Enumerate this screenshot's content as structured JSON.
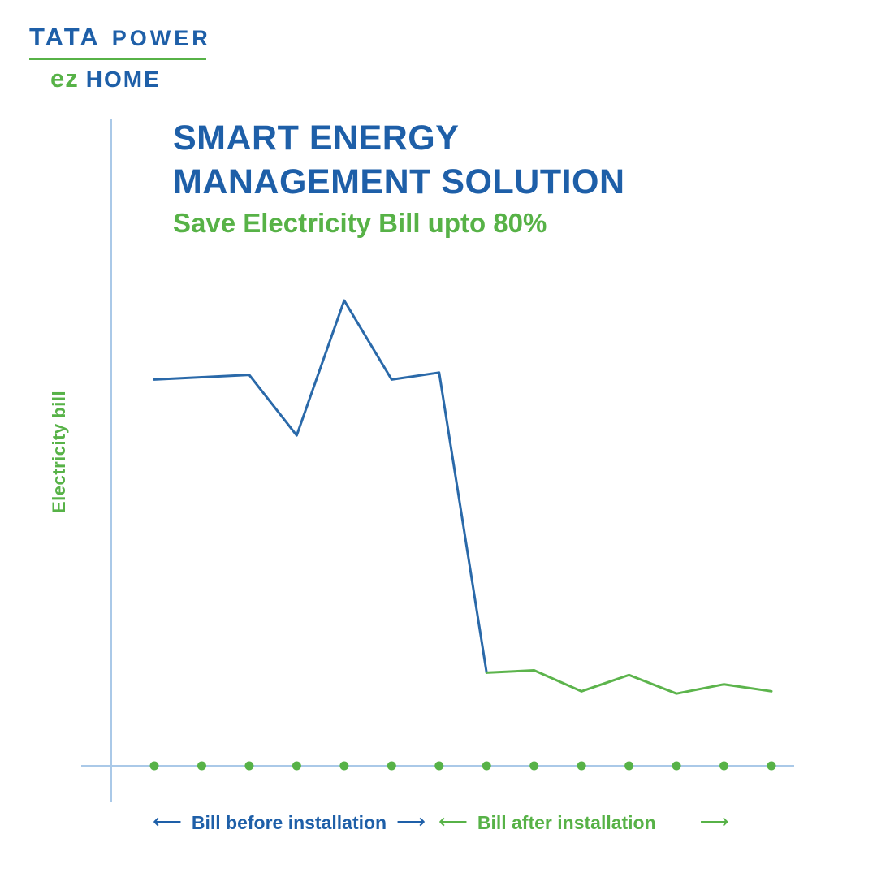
{
  "brand": {
    "line1_a": "TATA",
    "line1_b": "POWER",
    "line2_mark": "ez",
    "line2_text": "HOME"
  },
  "header": {
    "title_line1": "SMART ENERGY",
    "title_line2": "MANAGEMENT SOLUTION",
    "subtitle_prefix": "Save Electricity Bill ",
    "subtitle_bold": "upto 80%"
  },
  "colors": {
    "blue": "#1e5fa8",
    "green": "#57b247",
    "line_blue": "#2a69a9",
    "line_green": "#5cb44c",
    "axis": "#aac9e8"
  },
  "chart_data": {
    "type": "line",
    "title": "Smart Energy Management Solution — electricity bill before vs after installation",
    "ylabel": "Electricity bill",
    "xlabel": "",
    "x": [
      1,
      2,
      3,
      4,
      5,
      6,
      7,
      8,
      9,
      10,
      11,
      12,
      13,
      14
    ],
    "tick_dots": 14,
    "ylim": [
      0,
      110
    ],
    "grid": false,
    "legend": "none",
    "series": [
      {
        "name": "Bill before installation",
        "color": "#2a69a9",
        "x": [
          1,
          2,
          3,
          4,
          5,
          6,
          7,
          8
        ],
        "values": [
          83,
          83.5,
          84,
          71,
          100,
          83,
          84.5,
          20
        ]
      },
      {
        "name": "Bill after installation",
        "color": "#5cb44c",
        "x": [
          8,
          9,
          10,
          11,
          12,
          13,
          14
        ],
        "values": [
          20,
          20.5,
          16,
          19.5,
          15.5,
          17.5,
          16
        ]
      }
    ],
    "annotations": {
      "before_label": "Bill before installation",
      "after_label": "Bill after installation"
    }
  },
  "footer": {
    "arrow_left": "⟵",
    "arrow_right": "⟶"
  }
}
